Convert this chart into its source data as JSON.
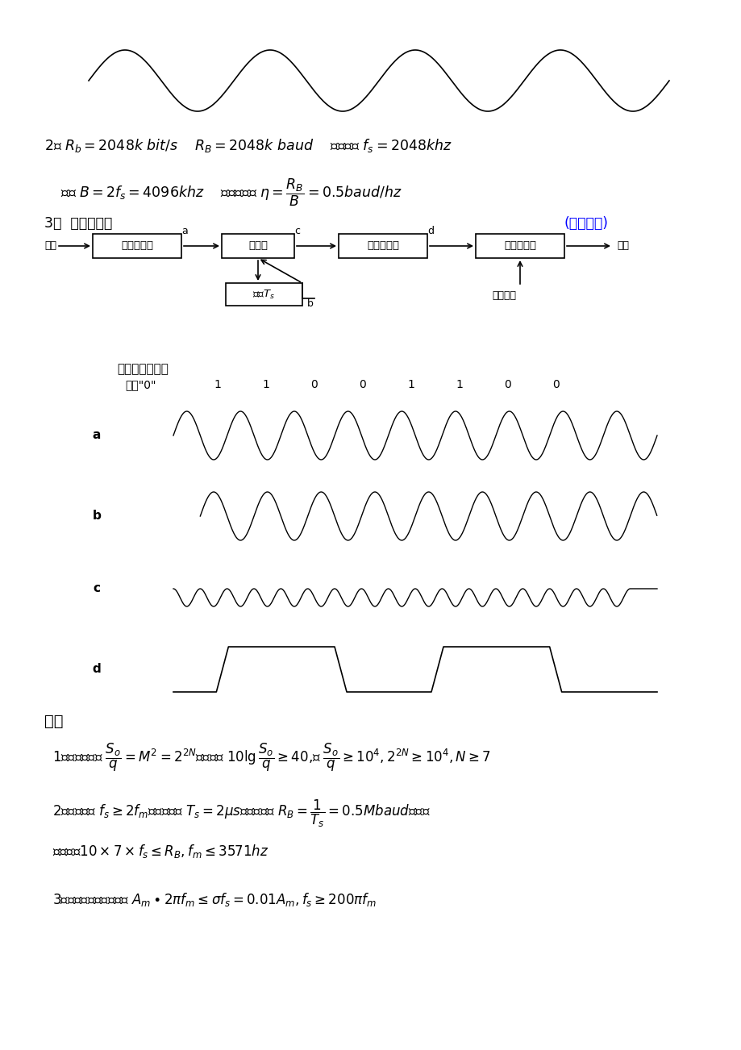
{
  "bg_color": "#ffffff",
  "text_color": "#000000",
  "blue_color": "#0000ff",
  "fig_width": 9.2,
  "fig_height": 13.02,
  "top_wave_text": "2、 $R_b = 2048k\\ bit/s$    $R_B = 2048k\\ baud$    信号频率 $f_s = 2048khz$",
  "line2_text": "带宽 $B = 2f_s = 4096khz$    频带利用率 $\\eta = \\dfrac{R_B}{B} = 0.5baud/hz$",
  "item3_text": "3、  框图如下图",
  "reverse_text": "(反向抄判)",
  "waveform_label": "各点波形如下图",
  "ref_label": "参考\"0\"",
  "bits": [
    "1",
    "1",
    "0",
    "0",
    "1",
    "1",
    "0",
    "0"
  ],
  "label_a": "a",
  "label_b": "b",
  "label_c": "c",
  "label_d": "d",
  "seven_text": "七、",
  "item71": "1、输出信噪比 $\\dfrac{S_o}{q} = M^2 = 2^{2N}$，由题意 $10\\lg\\dfrac{S_o}{q} \\geq 40$,即 $\\dfrac{S_o}{q} \\geq 10^4, 2^{2N} \\geq 10^4, N \\geq 7$",
  "item72": "2、抄样频率 $f_s \\geq 2f_m$，码元周期 $T_s = 2\\mu s$，码元速率 $R_B = \\dfrac{1}{T_s} = 0.5Mbaud$，时分",
  "item72b": "复用时， $10 \\times 7 \\times f_s \\leq R_B, f_m \\leq 3571hz$",
  "item73": "3、为保证不过载，要求 $A_m \\cdot 2\\pi f_m \\leq \\sigma f_s = 0.01A_m, f_s \\geq 200\\pi f_m$"
}
